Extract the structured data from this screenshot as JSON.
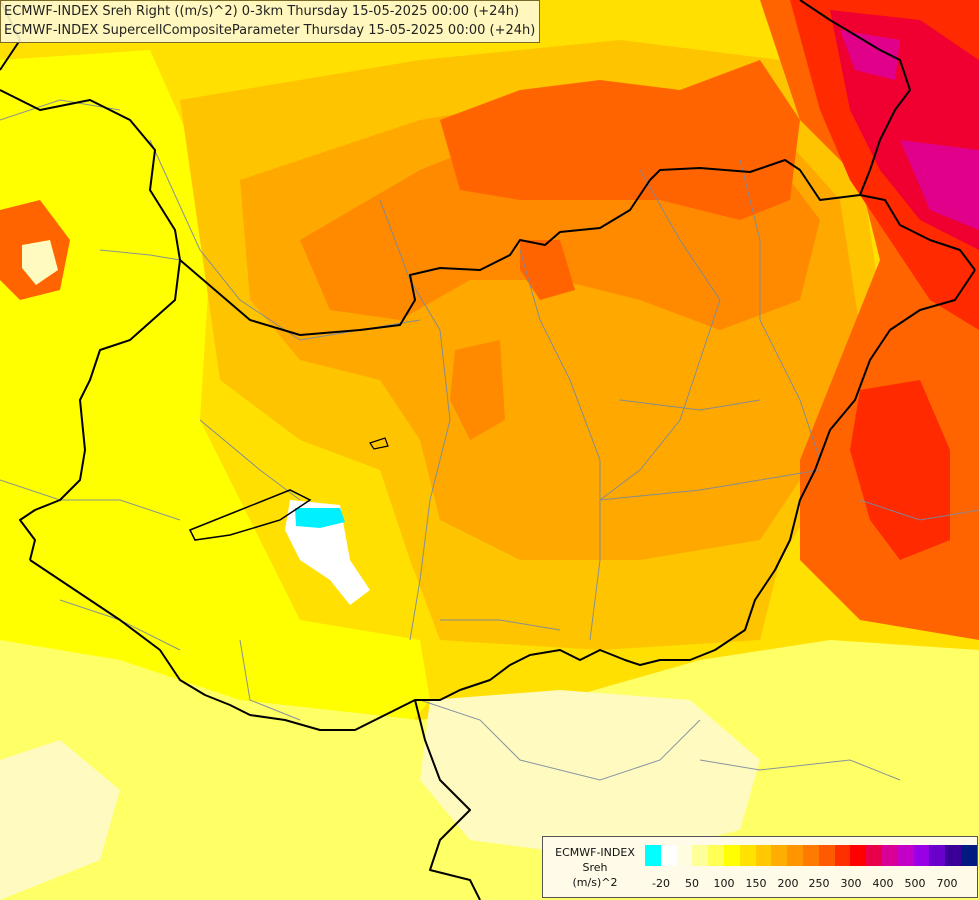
{
  "title": {
    "line1": "ECMWF-INDEX Sreh Right ((m/s)^2) 0-3km Thursday 15-05-2025 00:00 (+24h)",
    "line2": "ECMWF-INDEX SupercellCompositeParameter Thursday 15-05-2025 00:00 (+24h)"
  },
  "legend": {
    "title_lines": [
      "ECMWF-INDEX",
      "Sreh",
      "(m/s)^2"
    ],
    "colors": [
      "#00ffff",
      "#ffffff",
      "#fffde0",
      "#ffff99",
      "#ffff55",
      "#ffff00",
      "#ffe200",
      "#ffc800",
      "#ffad00",
      "#ff9500",
      "#ff7a00",
      "#ff5a00",
      "#ff3000",
      "#ff0000",
      "#e8004a",
      "#d80096",
      "#c400c8",
      "#9a00e6",
      "#6a00cc",
      "#3b0099",
      "#001a80"
    ],
    "tick_labels": [
      "-20",
      "50",
      "100",
      "150",
      "200",
      "250",
      "300",
      "400",
      "500",
      "700"
    ]
  },
  "map_fill_colors": {
    "pale": "#fffac0",
    "light": "#ffff66",
    "yellow": "#ffff00",
    "gold": "#ffe000",
    "amber": "#ffc400",
    "orange": "#ffa800",
    "dorange": "#ff8a00",
    "red_orange": "#ff6400",
    "red": "#ff2a00",
    "crimson": "#f00030",
    "magenta": "#e0008a",
    "cyan": "#00f0ff",
    "white": "#ffffff"
  }
}
